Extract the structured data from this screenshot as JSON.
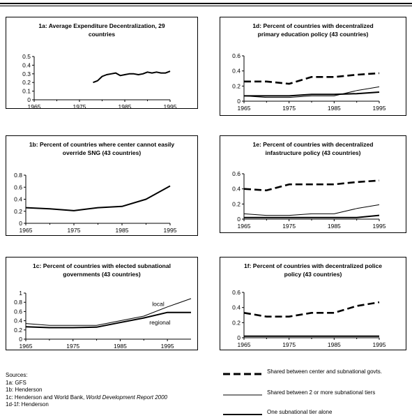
{
  "chart_data": [
    {
      "id": "1a",
      "type": "line",
      "title": "1a: Average Expenditure Decentralization, 29 countries",
      "x_ticks": [
        "1965",
        "1975",
        "1985",
        "1995"
      ],
      "y_ticks": [
        "0",
        "0.1",
        "0.2",
        "0.3",
        "0.4",
        "0.5"
      ],
      "xlim": [
        1965,
        1995
      ],
      "ylim": [
        0,
        0.5
      ],
      "series": [
        {
          "style": "thick",
          "x": [
            1978,
            1979,
            1980,
            1981,
            1982,
            1983,
            1984,
            1985,
            1986,
            1987,
            1988,
            1989,
            1990,
            1991,
            1992,
            1993,
            1994,
            1995
          ],
          "y": [
            0.2,
            0.22,
            0.27,
            0.29,
            0.3,
            0.31,
            0.28,
            0.29,
            0.3,
            0.3,
            0.29,
            0.3,
            0.32,
            0.31,
            0.32,
            0.31,
            0.31,
            0.33
          ]
        }
      ]
    },
    {
      "id": "1b",
      "type": "line",
      "title": "1b: Percent of countries where center cannot easily override SNG (43 countries)",
      "x_ticks": [
        "1965",
        "1975",
        "1985",
        "1995"
      ],
      "y_ticks": [
        "0",
        "0.2",
        "0.4",
        "0.6",
        "0.8"
      ],
      "xlim": [
        1965,
        1995
      ],
      "ylim": [
        0,
        0.8
      ],
      "series": [
        {
          "style": "thick",
          "x": [
            1965,
            1970,
            1975,
            1980,
            1985,
            1990,
            1995
          ],
          "y": [
            0.26,
            0.24,
            0.21,
            0.26,
            0.28,
            0.4,
            0.62
          ]
        }
      ]
    },
    {
      "id": "1c",
      "type": "line",
      "title": "1c: Percent of countries with elected subnational governments (43 countries)",
      "x_ticks": [
        "1965",
        "1975",
        "1985",
        "1995"
      ],
      "y_ticks": [
        "0",
        "0.2",
        "0.4",
        "0.6",
        "0.8",
        "1"
      ],
      "xlim": [
        1965,
        2000
      ],
      "ylim": [
        0,
        1
      ],
      "annotations": [
        "local",
        "regional"
      ],
      "series": [
        {
          "style": "thin",
          "label": "local",
          "x": [
            1965,
            1970,
            1975,
            1980,
            1985,
            1990,
            1995,
            2000
          ],
          "y": [
            0.34,
            0.3,
            0.3,
            0.3,
            0.4,
            0.5,
            0.7,
            0.88
          ]
        },
        {
          "style": "thick",
          "label": "regional",
          "x": [
            1965,
            1970,
            1975,
            1980,
            1985,
            1990,
            1995,
            2000
          ],
          "y": [
            0.27,
            0.25,
            0.25,
            0.26,
            0.36,
            0.46,
            0.58,
            0.58
          ]
        }
      ]
    },
    {
      "id": "1d",
      "type": "line",
      "title": "1d: Percent of countries with decentralized primary education policy (43 countries)",
      "x_ticks": [
        "1965",
        "1975",
        "1985",
        "1995"
      ],
      "y_ticks": [
        "0",
        "0.2",
        "0.4",
        "0.6"
      ],
      "xlim": [
        1965,
        1995
      ],
      "ylim": [
        0,
        0.6
      ],
      "series": [
        {
          "style": "dashed",
          "x": [
            1965,
            1970,
            1975,
            1980,
            1985,
            1990,
            1995
          ],
          "y": [
            0.26,
            0.26,
            0.23,
            0.32,
            0.32,
            0.35,
            0.37
          ]
        },
        {
          "style": "thin",
          "x": [
            1965,
            1970,
            1975,
            1980,
            1985,
            1990,
            1995
          ],
          "y": [
            0.07,
            0.05,
            0.05,
            0.07,
            0.07,
            0.14,
            0.19
          ]
        },
        {
          "style": "thick",
          "x": [
            1965,
            1970,
            1975,
            1980,
            1985,
            1990,
            1995
          ],
          "y": [
            0.07,
            0.07,
            0.07,
            0.09,
            0.09,
            0.1,
            0.12
          ]
        }
      ]
    },
    {
      "id": "1e",
      "type": "line",
      "title": "1e: Percent of countries with decentralized infastructure policy (43 countries)",
      "x_ticks": [
        "1965",
        "1975",
        "1985",
        "1995"
      ],
      "y_ticks": [
        "0",
        "0.2",
        "0.4",
        "0.6"
      ],
      "xlim": [
        1965,
        1995
      ],
      "ylim": [
        0,
        0.6
      ],
      "series": [
        {
          "style": "dashed",
          "x": [
            1965,
            1970,
            1975,
            1980,
            1985,
            1990,
            1995
          ],
          "y": [
            0.4,
            0.38,
            0.46,
            0.46,
            0.46,
            0.49,
            0.51
          ]
        },
        {
          "style": "thin",
          "x": [
            1965,
            1970,
            1975,
            1980,
            1985,
            1990,
            1995
          ],
          "y": [
            0.07,
            0.05,
            0.05,
            0.07,
            0.07,
            0.14,
            0.19
          ]
        },
        {
          "style": "thick",
          "x": [
            1965,
            1970,
            1975,
            1980,
            1985,
            1990,
            1995
          ],
          "y": [
            0.02,
            0.02,
            0.02,
            0.02,
            0.02,
            0.02,
            0.05
          ]
        }
      ]
    },
    {
      "id": "1f",
      "type": "line",
      "title": "1f: Percent of countries with decentralized police policy (43 countries)",
      "x_ticks": [
        "1965",
        "1975",
        "1985",
        "1995"
      ],
      "y_ticks": [
        "0",
        "0.2",
        "0.4",
        "0.6"
      ],
      "xlim": [
        1965,
        1995
      ],
      "ylim": [
        0,
        0.6
      ],
      "series": [
        {
          "style": "dashed",
          "x": [
            1965,
            1970,
            1975,
            1980,
            1985,
            1990,
            1995
          ],
          "y": [
            0.33,
            0.28,
            0.28,
            0.33,
            0.33,
            0.42,
            0.47
          ]
        },
        {
          "style": "thin",
          "x": [
            1965,
            1970,
            1975,
            1980,
            1985,
            1990,
            1995
          ],
          "y": [
            0.02,
            0.02,
            0.02,
            0.02,
            0.02,
            0.02,
            0.02
          ]
        },
        {
          "style": "thick",
          "x": [
            1965,
            1970,
            1975,
            1980,
            1985,
            1990,
            1995
          ],
          "y": [
            0.02,
            0.02,
            0.02,
            0.02,
            0.02,
            0.02,
            0.02
          ]
        }
      ]
    }
  ],
  "sources": {
    "heading": "Sources:",
    "line_1a": "1a: GFS",
    "line_1b": "1b: Henderson",
    "line_1c_prefix": "1c: Henderson and World Bank, ",
    "line_1c_italic": "World Development Report 2000",
    "line_1d_1f": "1d-1f: Henderson"
  },
  "legend": {
    "dashed": "Shared between center and subnational govts.",
    "thin": "Shared between  2 or more subnational tiers",
    "thick": "One subnational tier alone"
  }
}
